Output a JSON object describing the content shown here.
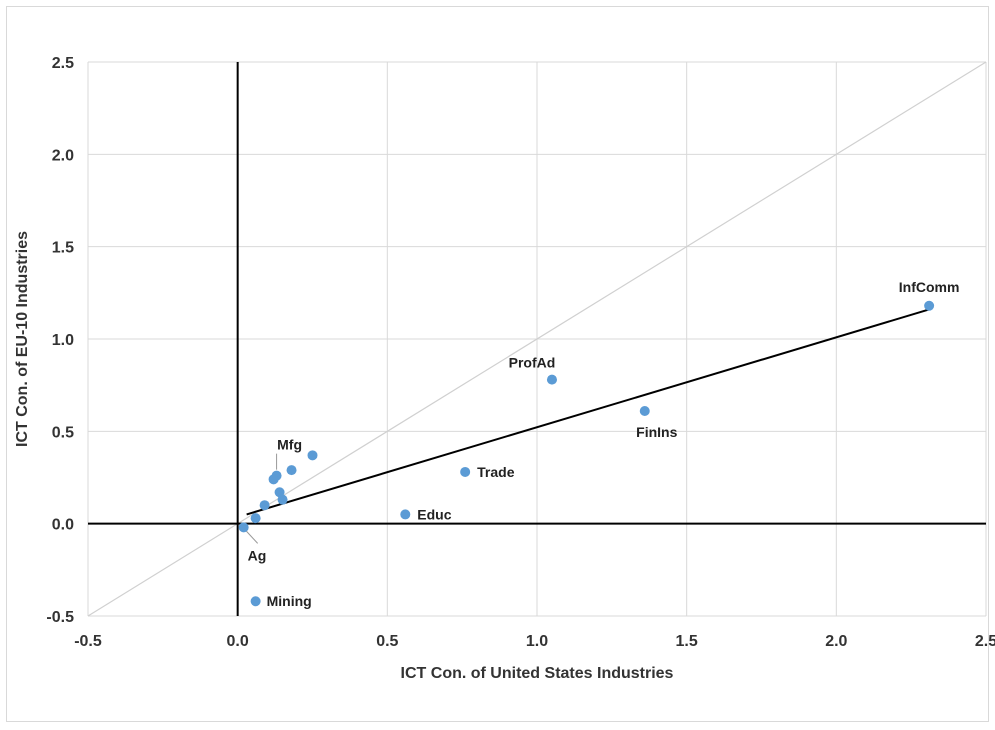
{
  "chart_data": {
    "type": "scatter",
    "title": "",
    "xlabel": "ICT Con. of United States Industries",
    "ylabel": "ICT Con. of EU-10 Industries",
    "xlim": [
      -0.5,
      2.5
    ],
    "ylim": [
      -0.5,
      2.5
    ],
    "x_ticks": [
      "-0.5",
      "0.0",
      "0.5",
      "1.0",
      "1.5",
      "2.0",
      "2.5"
    ],
    "y_ticks": [
      "-0.5",
      "0.0",
      "0.5",
      "1.0",
      "1.5",
      "2.0",
      "2.5"
    ],
    "grid": true,
    "legend": "none",
    "colors": {
      "marker": "#5b9bd5",
      "gridline": "#d9d9d9",
      "diagonal": "#d0d0d0",
      "trendline": "#000000",
      "axis": "#000000"
    },
    "points": [
      {
        "x": 2.31,
        "y": 1.18,
        "label": "InfComm"
      },
      {
        "x": 1.05,
        "y": 0.78,
        "label": "ProfAd"
      },
      {
        "x": 1.36,
        "y": 0.61,
        "label": "FinIns"
      },
      {
        "x": 0.76,
        "y": 0.28,
        "label": "Trade"
      },
      {
        "x": 0.56,
        "y": 0.05,
        "label": "Educ"
      },
      {
        "x": 0.06,
        "y": -0.42,
        "label": "Mining"
      },
      {
        "x": 0.02,
        "y": -0.02,
        "label": "Ag"
      },
      {
        "x": 0.13,
        "y": 0.26,
        "label": "Mfg"
      },
      {
        "x": 0.25,
        "y": 0.37,
        "label": ""
      },
      {
        "x": 0.18,
        "y": 0.29,
        "label": ""
      },
      {
        "x": 0.12,
        "y": 0.24,
        "label": ""
      },
      {
        "x": 0.14,
        "y": 0.17,
        "label": ""
      },
      {
        "x": 0.15,
        "y": 0.13,
        "label": ""
      },
      {
        "x": 0.09,
        "y": 0.1,
        "label": ""
      },
      {
        "x": 0.06,
        "y": 0.03,
        "label": ""
      }
    ],
    "trendline": {
      "x": [
        0.03,
        2.31
      ],
      "y": [
        0.05,
        1.16
      ]
    },
    "diagonal": {
      "x": [
        -0.5,
        2.5
      ],
      "y": [
        -0.5,
        2.5
      ]
    }
  }
}
